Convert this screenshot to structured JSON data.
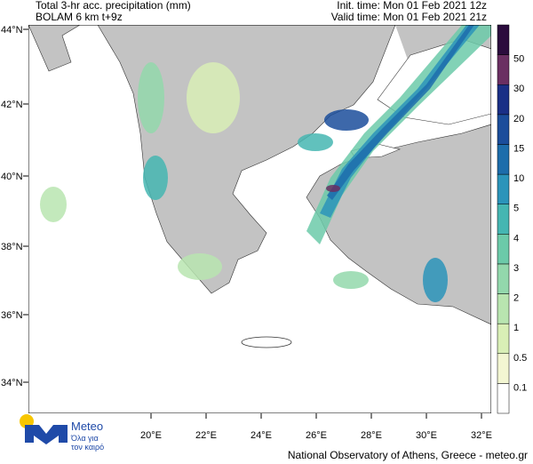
{
  "header": {
    "title": "Total 3-hr acc. precipitation (mm)",
    "model": "BOLAM 6 km t+9z",
    "init_time": "Init. time: Mon 01 Feb 2021 12z",
    "valid_time": "Valid time: Mon 01 Feb 2021 21z"
  },
  "latitude_labels": [
    "44°N",
    "42°N",
    "40°N",
    "38°N",
    "36°N",
    "34°N"
  ],
  "longitude_labels": [
    "20°E",
    "22°E",
    "24°E",
    "26°E",
    "28°E",
    "30°E",
    "32°E"
  ],
  "colorbar": {
    "levels": [
      "0.1",
      "0.5",
      "1",
      "2",
      "3",
      "4",
      "5",
      "10",
      "15",
      "20",
      "30",
      "50"
    ],
    "colors": [
      "#ffffff",
      "#f3f6d2",
      "#d9efb6",
      "#b9e5b0",
      "#93d8ac",
      "#6ccaa9",
      "#45b6b2",
      "#2b94ba",
      "#1d6dab",
      "#1b4d9b",
      "#1a2f86",
      "#6a2f62",
      "#2b0c3d"
    ]
  },
  "logo": {
    "name": "Meteo",
    "tagline": [
      "Όλα για",
      "τον καιρό"
    ]
  },
  "footer": "National Observatory of Athens, Greece - meteo.gr"
}
